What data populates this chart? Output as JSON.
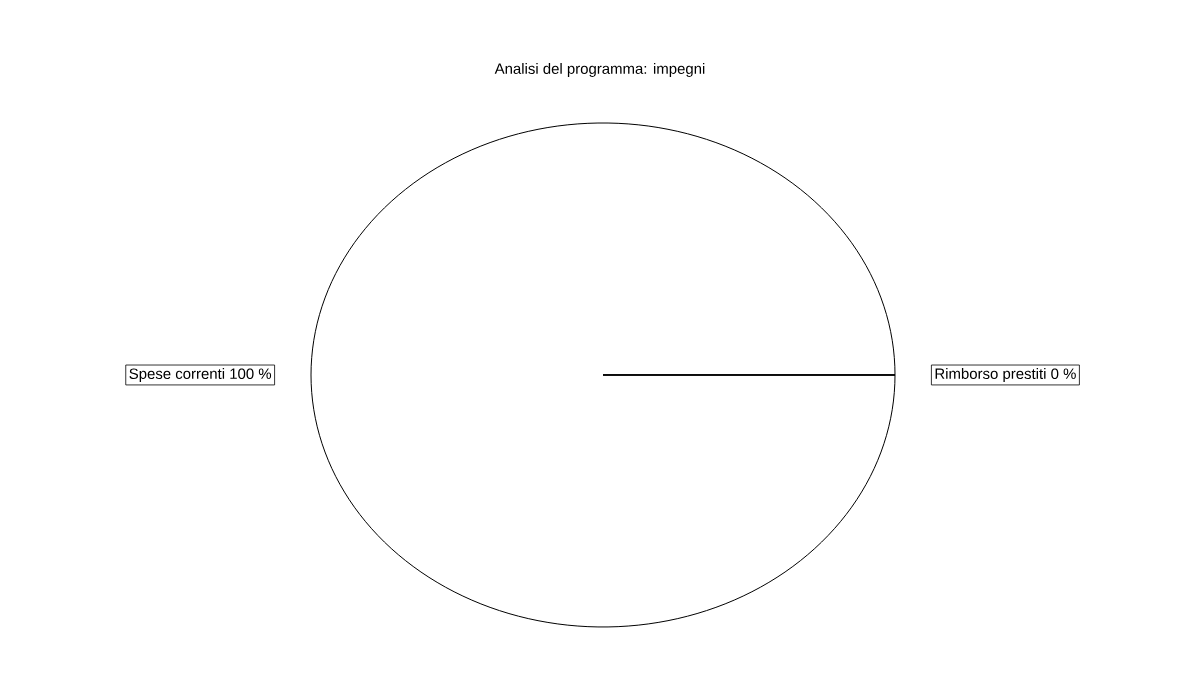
{
  "chart_data": {
    "type": "pie",
    "title": "Analisi del programma: impegni",
    "categories": [
      "Spese correnti",
      "Rimborso prestiti"
    ],
    "values": [
      100,
      0
    ],
    "value_labels": [
      "100 %",
      "0 %"
    ],
    "colors": [
      "#ffffff",
      "#ffffff"
    ]
  }
}
